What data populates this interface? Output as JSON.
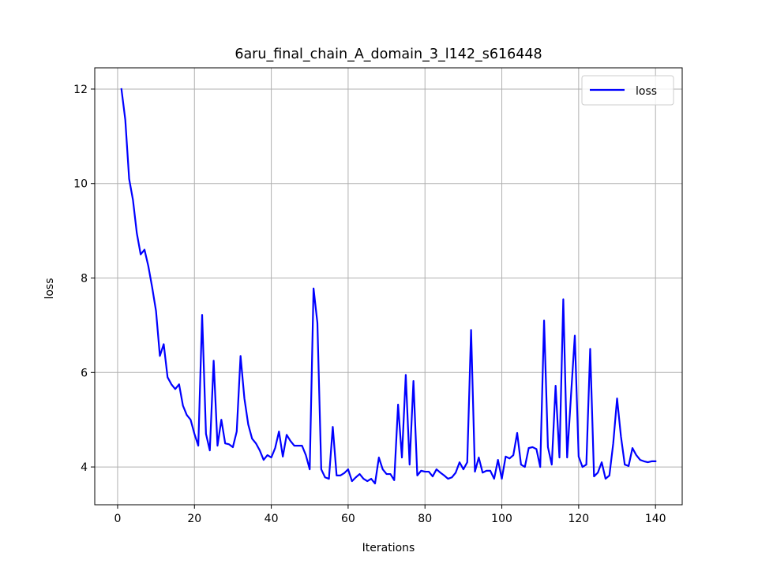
{
  "chart_data": {
    "type": "line",
    "title": "6aru_final_chain_A_domain_3_l142_s616448",
    "xlabel": "Iterations",
    "ylabel": "loss",
    "xlim": [
      -5.95,
      146.95
    ],
    "ylim": [
      3.2,
      12.45
    ],
    "xticks": [
      0,
      20,
      40,
      60,
      80,
      100,
      120,
      140
    ],
    "yticks": [
      4,
      6,
      8,
      10,
      12
    ],
    "grid": true,
    "legend": {
      "position": "top-right",
      "entries": [
        "loss"
      ]
    },
    "series": [
      {
        "name": "loss",
        "color": "#0000ff",
        "x": [
          1,
          2,
          3,
          4,
          5,
          6,
          7,
          8,
          9,
          10,
          11,
          12,
          13,
          14,
          15,
          16,
          17,
          18,
          19,
          20,
          21,
          22,
          23,
          24,
          25,
          26,
          27,
          28,
          29,
          30,
          31,
          32,
          33,
          34,
          35,
          36,
          37,
          38,
          39,
          40,
          41,
          42,
          43,
          44,
          45,
          46,
          47,
          48,
          49,
          50,
          51,
          52,
          53,
          54,
          55,
          56,
          57,
          58,
          59,
          60,
          61,
          62,
          63,
          64,
          65,
          66,
          67,
          68,
          69,
          70,
          71,
          72,
          73,
          74,
          75,
          76,
          77,
          78,
          79,
          80,
          81,
          82,
          83,
          84,
          85,
          86,
          87,
          88,
          89,
          90,
          91,
          92,
          93,
          94,
          95,
          96,
          97,
          98,
          99,
          100,
          101,
          102,
          103,
          104,
          105,
          106,
          107,
          108,
          109,
          110,
          111,
          112,
          113,
          114,
          115,
          116,
          117,
          118,
          119,
          120,
          121,
          122,
          123,
          124,
          125,
          126,
          127,
          128,
          129,
          130,
          131,
          132,
          133,
          134,
          135,
          136,
          137,
          138,
          139,
          140
        ],
        "y": [
          12.0,
          11.35,
          10.1,
          9.65,
          8.95,
          8.5,
          8.6,
          8.25,
          7.8,
          7.3,
          6.35,
          6.6,
          5.9,
          5.75,
          5.65,
          5.75,
          5.3,
          5.1,
          5.0,
          4.7,
          4.45,
          7.22,
          4.7,
          4.35,
          6.25,
          4.45,
          5.0,
          4.5,
          4.48,
          4.42,
          4.75,
          6.35,
          5.45,
          4.9,
          4.6,
          4.5,
          4.35,
          4.15,
          4.25,
          4.2,
          4.4,
          4.75,
          4.22,
          4.68,
          4.55,
          4.45,
          4.45,
          4.45,
          4.25,
          3.95,
          7.78,
          7.05,
          3.95,
          3.78,
          3.75,
          4.85,
          3.82,
          3.82,
          3.87,
          3.95,
          3.7,
          3.78,
          3.85,
          3.75,
          3.7,
          3.75,
          3.65,
          4.2,
          3.95,
          3.85,
          3.85,
          3.72,
          5.32,
          4.2,
          5.95,
          4.05,
          5.82,
          3.82,
          3.92,
          3.9,
          3.9,
          3.8,
          3.95,
          3.88,
          3.82,
          3.75,
          3.78,
          3.88,
          4.1,
          3.95,
          4.1,
          6.9,
          3.9,
          4.2,
          3.88,
          3.92,
          3.92,
          3.75,
          4.15,
          3.75,
          4.22,
          4.18,
          4.25,
          4.72,
          4.05,
          4.0,
          4.4,
          4.42,
          4.38,
          4.0,
          7.1,
          4.42,
          4.05,
          5.72,
          4.2,
          7.55,
          4.2,
          5.5,
          6.78,
          4.22,
          4.0,
          4.05,
          6.5,
          3.8,
          3.88,
          4.1,
          3.75,
          3.82,
          4.5,
          5.45,
          4.65,
          4.05,
          4.02,
          4.4,
          4.25,
          4.15,
          4.12,
          4.1,
          4.12,
          4.12
        ]
      }
    ]
  }
}
